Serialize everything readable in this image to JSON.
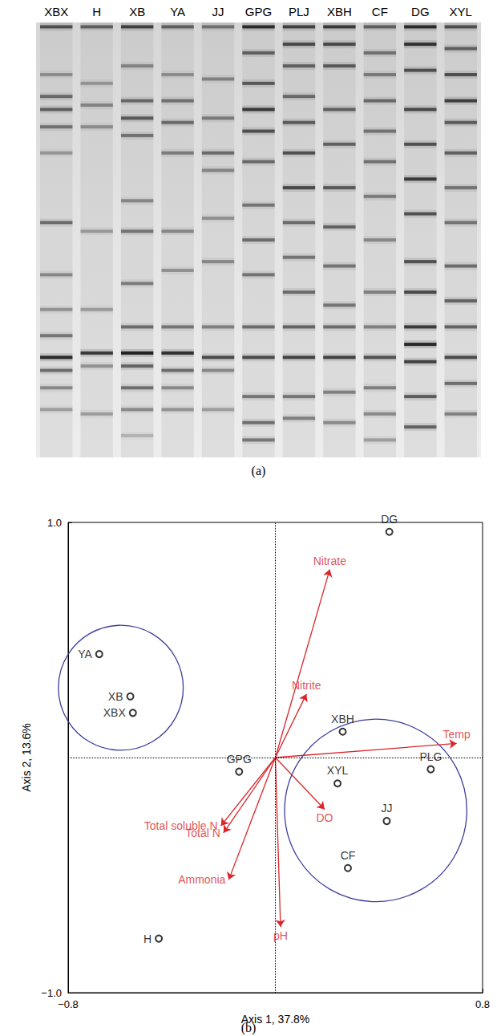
{
  "chart_data": [
    {
      "type": "gel",
      "panel": "(a)",
      "lanes": [
        {
          "label": "XBX",
          "bands": [
            [
              0.01,
              0.7
            ],
            [
              0.12,
              0.35
            ],
            [
              0.17,
              0.55
            ],
            [
              0.2,
              0.6
            ],
            [
              0.24,
              0.5
            ],
            [
              0.3,
              0.3
            ],
            [
              0.46,
              0.55
            ],
            [
              0.58,
              0.4
            ],
            [
              0.66,
              0.35
            ],
            [
              0.72,
              0.5
            ],
            [
              0.77,
              0.95
            ],
            [
              0.8,
              0.55
            ],
            [
              0.84,
              0.4
            ],
            [
              0.89,
              0.3
            ]
          ]
        },
        {
          "label": "H",
          "bands": [
            [
              0.01,
              0.6
            ],
            [
              0.14,
              0.3
            ],
            [
              0.19,
              0.4
            ],
            [
              0.24,
              0.35
            ],
            [
              0.48,
              0.3
            ],
            [
              0.66,
              0.3
            ],
            [
              0.76,
              0.85
            ],
            [
              0.79,
              0.35
            ],
            [
              0.9,
              0.3
            ]
          ]
        },
        {
          "label": "XB",
          "bands": [
            [
              0.01,
              0.8
            ],
            [
              0.1,
              0.4
            ],
            [
              0.18,
              0.55
            ],
            [
              0.22,
              0.65
            ],
            [
              0.26,
              0.5
            ],
            [
              0.41,
              0.4
            ],
            [
              0.48,
              0.5
            ],
            [
              0.6,
              0.45
            ],
            [
              0.7,
              0.55
            ],
            [
              0.76,
              1.0
            ],
            [
              0.79,
              0.6
            ],
            [
              0.84,
              0.55
            ],
            [
              0.89,
              0.4
            ],
            [
              0.95,
              0.2
            ]
          ]
        },
        {
          "label": "YA",
          "bands": [
            [
              0.01,
              0.6
            ],
            [
              0.12,
              0.35
            ],
            [
              0.18,
              0.5
            ],
            [
              0.23,
              0.55
            ],
            [
              0.3,
              0.45
            ],
            [
              0.48,
              0.4
            ],
            [
              0.57,
              0.35
            ],
            [
              0.7,
              0.5
            ],
            [
              0.76,
              0.9
            ],
            [
              0.8,
              0.55
            ],
            [
              0.84,
              0.4
            ],
            [
              0.89,
              0.35
            ]
          ]
        },
        {
          "label": "JJ",
          "bands": [
            [
              0.01,
              0.5
            ],
            [
              0.13,
              0.4
            ],
            [
              0.22,
              0.45
            ],
            [
              0.3,
              0.55
            ],
            [
              0.34,
              0.4
            ],
            [
              0.45,
              0.35
            ],
            [
              0.55,
              0.4
            ],
            [
              0.7,
              0.45
            ],
            [
              0.77,
              0.75
            ],
            [
              0.8,
              0.4
            ],
            [
              0.89,
              0.3
            ]
          ]
        },
        {
          "label": "GPG",
          "bands": [
            [
              0.01,
              0.95
            ],
            [
              0.07,
              0.6
            ],
            [
              0.14,
              0.65
            ],
            [
              0.2,
              0.85
            ],
            [
              0.25,
              0.7
            ],
            [
              0.32,
              0.55
            ],
            [
              0.42,
              0.5
            ],
            [
              0.5,
              0.55
            ],
            [
              0.58,
              0.5
            ],
            [
              0.7,
              0.55
            ],
            [
              0.77,
              0.75
            ],
            [
              0.86,
              0.5
            ],
            [
              0.92,
              0.55
            ],
            [
              0.96,
              0.5
            ]
          ]
        },
        {
          "label": "PLJ",
          "bands": [
            [
              0.01,
              0.8
            ],
            [
              0.05,
              0.75
            ],
            [
              0.1,
              0.6
            ],
            [
              0.17,
              0.55
            ],
            [
              0.23,
              0.65
            ],
            [
              0.3,
              0.7
            ],
            [
              0.38,
              0.75
            ],
            [
              0.46,
              0.55
            ],
            [
              0.54,
              0.5
            ],
            [
              0.62,
              0.55
            ],
            [
              0.7,
              0.6
            ],
            [
              0.77,
              0.8
            ],
            [
              0.86,
              0.5
            ],
            [
              0.91,
              0.45
            ]
          ]
        },
        {
          "label": "XBH",
          "bands": [
            [
              0.01,
              0.85
            ],
            [
              0.05,
              0.75
            ],
            [
              0.1,
              0.65
            ],
            [
              0.2,
              0.6
            ],
            [
              0.28,
              0.6
            ],
            [
              0.38,
              0.65
            ],
            [
              0.47,
              0.6
            ],
            [
              0.56,
              0.5
            ],
            [
              0.65,
              0.5
            ],
            [
              0.7,
              0.55
            ],
            [
              0.77,
              0.8
            ],
            [
              0.85,
              0.45
            ],
            [
              0.92,
              0.4
            ]
          ]
        },
        {
          "label": "CF",
          "bands": [
            [
              0.01,
              0.6
            ],
            [
              0.07,
              0.5
            ],
            [
              0.12,
              0.45
            ],
            [
              0.18,
              0.55
            ],
            [
              0.25,
              0.5
            ],
            [
              0.32,
              0.5
            ],
            [
              0.4,
              0.45
            ],
            [
              0.5,
              0.4
            ],
            [
              0.62,
              0.45
            ],
            [
              0.7,
              0.45
            ],
            [
              0.77,
              0.7
            ],
            [
              0.84,
              0.45
            ],
            [
              0.9,
              0.4
            ],
            [
              0.96,
              0.3
            ]
          ]
        },
        {
          "label": "DG",
          "bands": [
            [
              0.01,
              0.95
            ],
            [
              0.05,
              0.9
            ],
            [
              0.11,
              0.7
            ],
            [
              0.2,
              0.75
            ],
            [
              0.28,
              0.7
            ],
            [
              0.36,
              0.85
            ],
            [
              0.44,
              0.7
            ],
            [
              0.55,
              0.7
            ],
            [
              0.62,
              0.75
            ],
            [
              0.7,
              0.85
            ],
            [
              0.74,
              0.95
            ],
            [
              0.78,
              0.8
            ],
            [
              0.86,
              0.65
            ],
            [
              0.93,
              0.6
            ]
          ]
        },
        {
          "label": "XYL",
          "bands": [
            [
              0.01,
              0.7
            ],
            [
              0.06,
              0.6
            ],
            [
              0.12,
              0.7
            ],
            [
              0.18,
              0.8
            ],
            [
              0.23,
              0.65
            ],
            [
              0.3,
              0.6
            ],
            [
              0.38,
              0.5
            ],
            [
              0.46,
              0.5
            ],
            [
              0.56,
              0.55
            ],
            [
              0.64,
              0.6
            ],
            [
              0.7,
              0.6
            ],
            [
              0.77,
              0.75
            ],
            [
              0.83,
              0.55
            ],
            [
              0.9,
              0.45
            ]
          ]
        }
      ]
    },
    {
      "type": "biplot",
      "panel": "(b)",
      "x_label": "Axis 1, 37.8%",
      "y_label": "Axis 2, 13.6%",
      "xlim": [
        -0.8,
        0.8
      ],
      "ylim": [
        -1,
        1
      ],
      "xticks": [
        {
          "value": -0.8,
          "label": "−0.8"
        },
        0.8
      ],
      "yticks": [
        {
          "value": -1,
          "label": "−1.0"
        },
        {
          "value": 1,
          "label": "1.0"
        }
      ],
      "points": {
        "color": "#000000",
        "marker": "circle",
        "labels": [
          "YA",
          "XB",
          "XBX",
          "GPG",
          "H",
          "DG",
          "XBH",
          "XYL",
          "PLG",
          "JJ",
          "CF"
        ],
        "x": [
          -0.68,
          -0.56,
          -0.55,
          -0.14,
          -0.45,
          0.44,
          0.26,
          0.24,
          0.6,
          0.43,
          0.28
        ],
        "y": [
          0.44,
          0.26,
          0.19,
          -0.06,
          -0.77,
          0.96,
          0.11,
          -0.11,
          -0.05,
          -0.27,
          -0.47
        ]
      },
      "vectors": {
        "color": "#d9262b",
        "labels": [
          "Nitrate",
          "Nitrite",
          "Temp",
          "DO",
          "pH",
          "Ammonia",
          "Total N",
          "Total soluble N"
        ],
        "x": [
          0.21,
          0.12,
          0.7,
          0.19,
          0.02,
          -0.18,
          -0.2,
          -0.21
        ],
        "y": [
          0.8,
          0.27,
          0.06,
          -0.22,
          -0.72,
          -0.52,
          -0.32,
          -0.29
        ]
      },
      "groups": [
        {
          "members": [
            "YA",
            "XB",
            "XBX"
          ],
          "color": "#3d3d9e"
        },
        {
          "members": [
            "XYL",
            "JJ",
            "CF",
            "PLG"
          ],
          "color": "#3d3d9e"
        }
      ]
    }
  ]
}
